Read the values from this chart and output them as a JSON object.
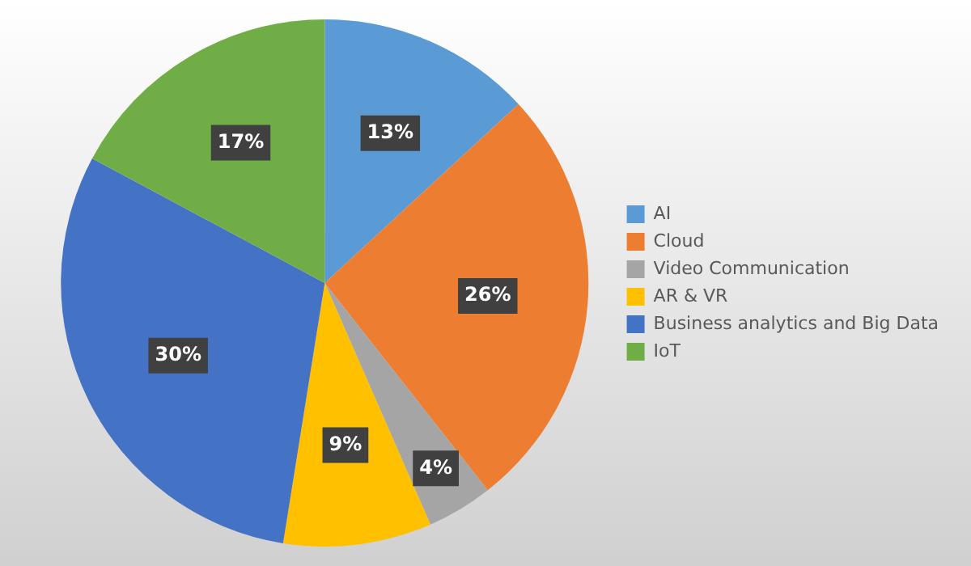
{
  "chart_data": {
    "type": "pie",
    "categories": [
      "AI",
      "Cloud",
      "Video Communication",
      "AR & VR",
      "Business analytics and Big Data",
      "IoT"
    ],
    "values": [
      13,
      26,
      4,
      9,
      30,
      17
    ],
    "value_labels": [
      "13%",
      "26%",
      "4%",
      "9%",
      "30%",
      "17%"
    ],
    "colors": [
      "#5b9bd5",
      "#ed7d31",
      "#a5a5a5",
      "#ffc000",
      "#4472c4",
      "#70ad47"
    ],
    "legend": "right"
  }
}
